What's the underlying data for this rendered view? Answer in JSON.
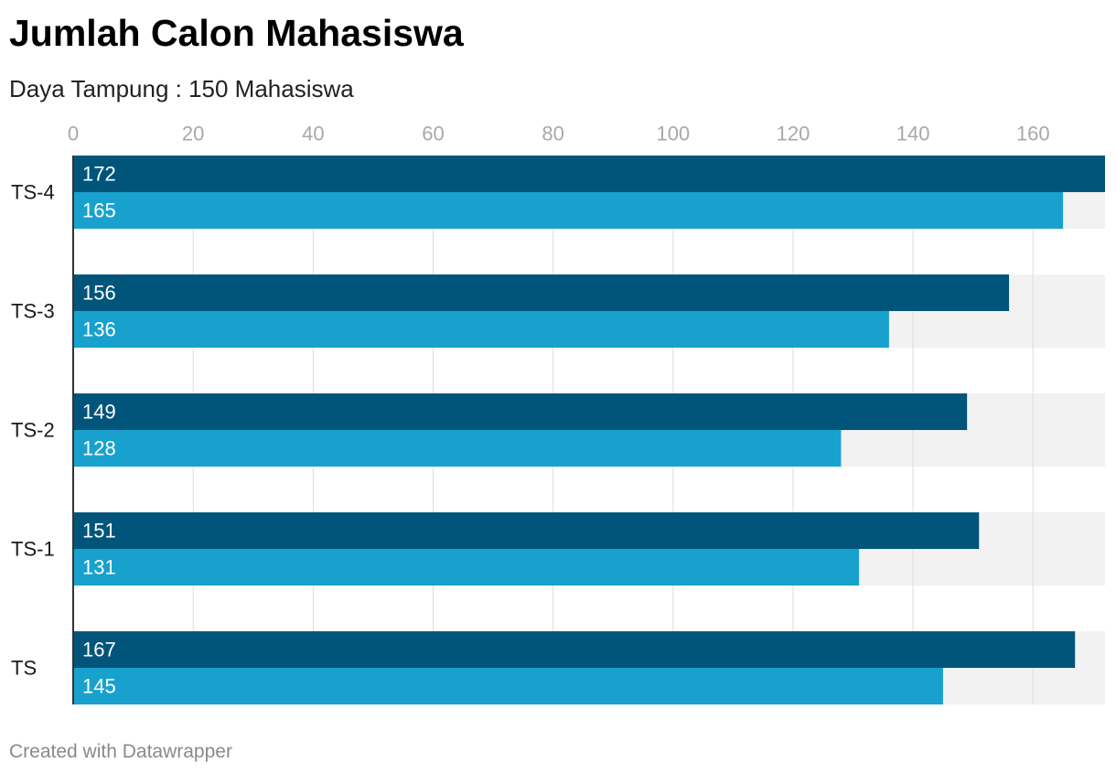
{
  "header": {
    "title": "Jumlah Calon Mahasiswa",
    "subtitle": "Daya Tampung : 150 Mahasiswa"
  },
  "footer": {
    "credit": "Created with Datawrapper"
  },
  "colors": {
    "series_dark": "#01557b",
    "series_light": "#18a1cd",
    "background_band": "#f2f2f2",
    "grid": "#dddddd",
    "axis": "#333333"
  },
  "chart_data": {
    "type": "bar",
    "orientation": "horizontal",
    "title": "Jumlah Calon Mahasiswa",
    "subtitle": "Daya Tampung : 150 Mahasiswa",
    "categories": [
      "TS-4",
      "TS-3",
      "TS-2",
      "TS-1",
      "TS"
    ],
    "series": [
      {
        "values": [
          172,
          156,
          149,
          151,
          167
        ]
      },
      {
        "values": [
          165,
          136,
          128,
          131,
          145
        ]
      }
    ],
    "xlim": [
      0,
      172
    ],
    "xticks": [
      0,
      20,
      40,
      60,
      80,
      100,
      120,
      140,
      160
    ],
    "grid": true,
    "axis_position": "top",
    "xlabel": "",
    "ylabel": ""
  }
}
